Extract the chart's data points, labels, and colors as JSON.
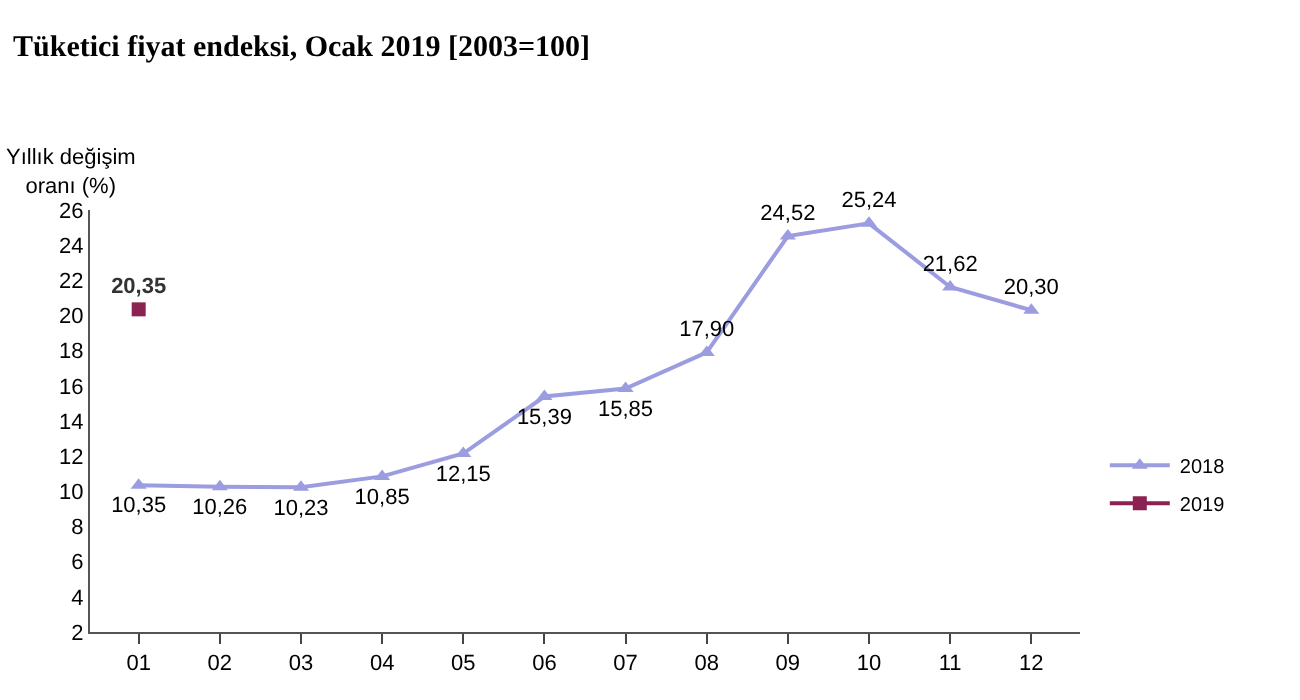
{
  "chart_data": {
    "type": "line",
    "title": "Tüketici fiyat endeksi, Ocak 2019 [2003=100]",
    "ylabel": "Yıllık değişim\noranı (%)",
    "categories": [
      "01",
      "02",
      "03",
      "04",
      "05",
      "06",
      "07",
      "08",
      "09",
      "10",
      "11",
      "12"
    ],
    "series": [
      {
        "name": "2018",
        "color": "#9c9ce0",
        "marker": "triangle",
        "values": [
          10.35,
          10.26,
          10.23,
          10.85,
          12.15,
          15.39,
          15.85,
          17.9,
          24.52,
          25.24,
          21.62,
          20.3
        ],
        "value_labels": [
          "10,35",
          "10,26",
          "10,23",
          "10,85",
          "12,15",
          "15,39",
          "15,85",
          "17,90",
          "24,52",
          "25,24",
          "21,62",
          "20,30"
        ]
      },
      {
        "name": "2019",
        "color": "#8b2252",
        "marker": "square",
        "values": [
          20.35,
          null,
          null,
          null,
          null,
          null,
          null,
          null,
          null,
          null,
          null,
          null
        ],
        "value_labels": [
          "20,35",
          null,
          null,
          null,
          null,
          null,
          null,
          null,
          null,
          null,
          null,
          null
        ]
      }
    ],
    "ylim": [
      2,
      26
    ],
    "yticks": [
      2,
      4,
      6,
      8,
      10,
      12,
      14,
      16,
      18,
      20,
      22,
      24,
      26
    ],
    "legend": "right"
  }
}
